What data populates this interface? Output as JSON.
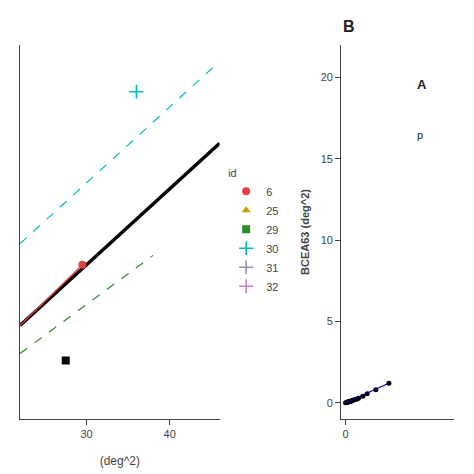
{
  "chart_data": [
    {
      "type": "line",
      "xlabel": "(deg^2)",
      "xlim": [
        22,
        46
      ],
      "xticks": [
        30,
        40
      ],
      "ylim": [
        3,
        19
      ],
      "yticks": [],
      "tick_labels": "x",
      "grid": false,
      "legend": "right",
      "legend_title": "id",
      "series": [
        {
          "type": "line",
          "color": "#000000",
          "line_style": "solid",
          "x": [
            22,
            46
          ],
          "values": [
            7.0,
            14.8
          ]
        },
        {
          "type": "line",
          "color": "#00bbbb",
          "line_style": "dashed",
          "x": [
            22,
            46
          ],
          "values": [
            10.5,
            18.3
          ]
        },
        {
          "type": "line",
          "color": "#2e8b2e",
          "line_style": "dashed",
          "x": [
            22,
            38
          ],
          "values": [
            5.8,
            10.0
          ]
        },
        {
          "type": "line",
          "color": "#e84040",
          "line_style": "solid",
          "x": [
            22,
            29.5
          ],
          "values": [
            7.0,
            9.6
          ]
        },
        {
          "type": "scatter",
          "color": "#e84040",
          "marker": "circle",
          "x": [
            29.5
          ],
          "values": [
            9.6
          ]
        },
        {
          "type": "scatter",
          "color": "#000000",
          "marker": "square",
          "x": [
            27.5
          ],
          "values": [
            5.5
          ]
        },
        {
          "type": "scatter",
          "color": "#00bbbb",
          "marker": "plus",
          "x": [
            36
          ],
          "values": [
            17.0
          ]
        },
        {
          "type": "scatter",
          "name": "6",
          "color": "#e84040",
          "marker": "circle",
          "x": [],
          "values": []
        },
        {
          "type": "scatter",
          "name": "25",
          "color": "#c8a000",
          "marker": "triangle",
          "x": [],
          "values": []
        },
        {
          "type": "scatter",
          "name": "29",
          "color": "#2e8b2e",
          "marker": "square",
          "x": [],
          "values": []
        },
        {
          "type": "scatter",
          "name": "30",
          "color": "#00bbbb",
          "marker": "plus",
          "x": [],
          "values": []
        },
        {
          "type": "scatter",
          "name": "31",
          "color": "#9090b0",
          "marker": "plus",
          "x": [],
          "values": []
        },
        {
          "type": "scatter",
          "name": "32",
          "color": "#d080c0",
          "marker": "plus",
          "x": [],
          "values": []
        }
      ]
    },
    {
      "type": "scatter",
      "title": "B",
      "ylabel": "BCEA63 (deg^2)",
      "xlim": [
        -0.2,
        5
      ],
      "ylim": [
        -1,
        22
      ],
      "xticks": [
        0
      ],
      "yticks": [
        0,
        5,
        10,
        15,
        20
      ],
      "grid": false,
      "annotations": [
        "A",
        "p"
      ],
      "series": [
        {
          "type": "scatter",
          "color": "#000000",
          "marker": "circle",
          "x": [
            0.0,
            0.05,
            0.08,
            0.1,
            0.12,
            0.15,
            0.18,
            0.2,
            0.22,
            0.25,
            0.28,
            0.3,
            0.35,
            0.4,
            0.5,
            0.6,
            0.8,
            1.0,
            1.4,
            2.0
          ],
          "values": [
            0.0,
            0.02,
            0.03,
            0.04,
            0.05,
            0.06,
            0.07,
            0.08,
            0.09,
            0.1,
            0.11,
            0.12,
            0.15,
            0.18,
            0.22,
            0.28,
            0.4,
            0.55,
            0.8,
            1.2
          ]
        },
        {
          "type": "line",
          "color": "#00008B",
          "line_style": "solid",
          "x": [
            0.0,
            2.0
          ],
          "values": [
            0.0,
            1.2
          ]
        }
      ]
    }
  ]
}
